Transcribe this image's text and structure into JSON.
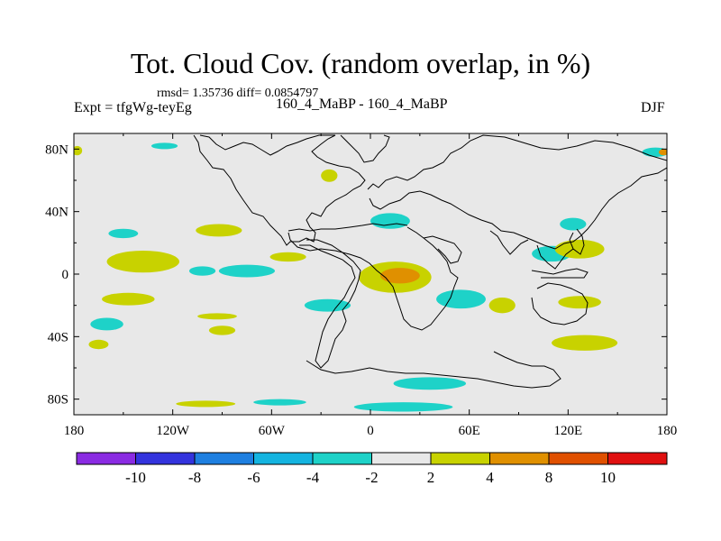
{
  "title": "Tot. Cloud Cov. (random overlap, in %)",
  "stats": "rmsd= 1.35736 diff= 0.0854797",
  "expt": "Expt = tfgWg-teyEg",
  "case": "160_4_MaBP - 160_4_MaBP",
  "season": "DJF",
  "colors": {
    "background_field": "#e8e8e8",
    "coastline": "#000000",
    "levels": [
      "#8a2be2",
      "#3333dd",
      "#1e7fe0",
      "#14b4e0",
      "#1ed2c8",
      "#e8e8e8",
      "#c8d200",
      "#e09000",
      "#e05000",
      "#e01010"
    ]
  },
  "map": {
    "projection": "cylindrical-equidistant",
    "lon_range": [
      -180,
      180
    ],
    "lat_range": [
      -90,
      90
    ],
    "x_ticks": [
      "180",
      "120W",
      "60W",
      "0",
      "60E",
      "120E",
      "180"
    ],
    "y_ticks": [
      "80N",
      "40N",
      "0",
      "40S",
      "80S"
    ]
  },
  "colorbar": {
    "labels": [
      "-10",
      "-8",
      "-6",
      "-4",
      "-2",
      "2",
      "4",
      "8",
      "10"
    ],
    "levels": [
      -10,
      -8,
      -6,
      -4,
      -2,
      2,
      4,
      8,
      10
    ]
  },
  "anomalies": [
    {
      "lon": 15,
      "lat": -2,
      "rx": 22,
      "ry": 10,
      "value": 3
    },
    {
      "lon": 18,
      "lat": -1,
      "rx": 12,
      "ry": 5,
      "value": 5
    },
    {
      "lon": 12,
      "lat": 34,
      "rx": 12,
      "ry": 5,
      "value": -3
    },
    {
      "lon": -138,
      "lat": 8,
      "rx": 22,
      "ry": 7,
      "value": 3
    },
    {
      "lon": -92,
      "lat": 28,
      "rx": 14,
      "ry": 4,
      "value": 3
    },
    {
      "lon": -50,
      "lat": 11,
      "rx": 11,
      "ry": 3,
      "value": 3
    },
    {
      "lon": -150,
      "lat": 26,
      "rx": 9,
      "ry": 3,
      "value": -3
    },
    {
      "lon": -102,
      "lat": 2,
      "rx": 8,
      "ry": 3,
      "value": -3
    },
    {
      "lon": -75,
      "lat": 2,
      "rx": 17,
      "ry": 4,
      "value": -3
    },
    {
      "lon": -147,
      "lat": -16,
      "rx": 16,
      "ry": 4,
      "value": 3
    },
    {
      "lon": -26,
      "lat": -20,
      "rx": 14,
      "ry": 4,
      "value": -3
    },
    {
      "lon": -93,
      "lat": -27,
      "rx": 12,
      "ry": 2,
      "value": 3
    },
    {
      "lon": -160,
      "lat": -32,
      "rx": 10,
      "ry": 4,
      "value": -3
    },
    {
      "lon": -165,
      "lat": -45,
      "rx": 6,
      "ry": 3,
      "value": 3
    },
    {
      "lon": -90,
      "lat": -36,
      "rx": 8,
      "ry": 3,
      "value": 3
    },
    {
      "lon": 55,
      "lat": -16,
      "rx": 15,
      "ry": 6,
      "value": -3
    },
    {
      "lon": 80,
      "lat": -20,
      "rx": 8,
      "ry": 5,
      "value": 3
    },
    {
      "lon": 127,
      "lat": -18,
      "rx": 13,
      "ry": 4,
      "value": 3
    },
    {
      "lon": 130,
      "lat": -44,
      "rx": 20,
      "ry": 5,
      "value": 3
    },
    {
      "lon": 110,
      "lat": 13,
      "rx": 12,
      "ry": 5,
      "value": -3
    },
    {
      "lon": 127,
      "lat": 16,
      "rx": 15,
      "ry": 6,
      "value": 3
    },
    {
      "lon": 123,
      "lat": 32,
      "rx": 8,
      "ry": 4,
      "value": -3
    },
    {
      "lon": 36,
      "lat": -70,
      "rx": 22,
      "ry": 4,
      "value": -3
    },
    {
      "lon": 20,
      "lat": -85,
      "rx": 30,
      "ry": 3,
      "value": -3
    },
    {
      "lon": -100,
      "lat": -83,
      "rx": 18,
      "ry": 2,
      "value": 3
    },
    {
      "lon": -55,
      "lat": -82,
      "rx": 16,
      "ry": 2,
      "value": -3
    },
    {
      "lon": -25,
      "lat": 63,
      "rx": 5,
      "ry": 4,
      "value": 3
    },
    {
      "lon": -125,
      "lat": 82,
      "rx": 8,
      "ry": 2,
      "value": -3
    },
    {
      "lon": 173,
      "lat": 78,
      "rx": 8,
      "ry": 3,
      "value": -3
    },
    {
      "lon": 178,
      "lat": 78,
      "rx": 3,
      "ry": 2,
      "value": 5
    },
    {
      "lon": -178,
      "lat": 79,
      "rx": 3,
      "ry": 3,
      "value": 3
    }
  ]
}
